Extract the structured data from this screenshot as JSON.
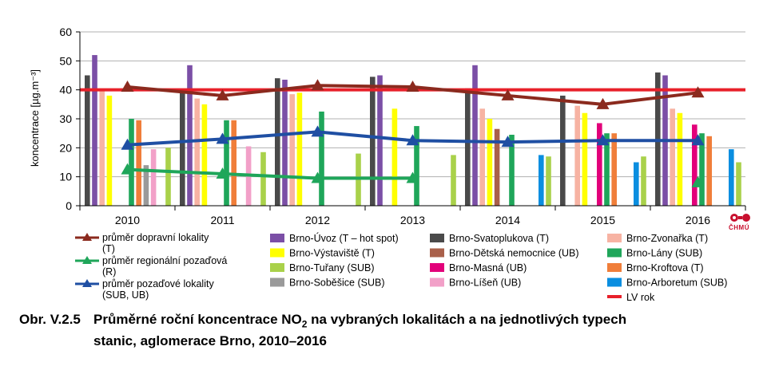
{
  "chart_data": {
    "type": "bar",
    "categories": [
      "2010",
      "2011",
      "2012",
      "2013",
      "2014",
      "2015",
      "2016"
    ],
    "ylabel": "koncentrace [µg.m⁻³]",
    "ylim": [
      0,
      60
    ],
    "yticks": [
      0,
      10,
      20,
      30,
      40,
      50,
      60
    ],
    "grid": "horizontal",
    "legend_position": "bottom",
    "bar_series": [
      {
        "name": "Brno-Svatoplukova (T)",
        "color": "#4a4a4a",
        "values": [
          45,
          39,
          44,
          44.5,
          40.5,
          38,
          46
        ]
      },
      {
        "name": "Brno-Úvoz (T – hot spot)",
        "color": "#7b4fa6",
        "values": [
          52,
          48.5,
          43.5,
          45,
          48.5,
          null,
          45
        ]
      },
      {
        "name": "Brno-Zvonařka (T)",
        "color": "#f7b3a3",
        "values": [
          39.5,
          37,
          38.5,
          null,
          33.5,
          34.5,
          33.5
        ]
      },
      {
        "name": "Brno-Výstaviště (T)",
        "color": "#ffff00",
        "values": [
          38,
          35,
          39,
          33.5,
          30,
          32,
          32
        ]
      },
      {
        "name": "Brno-Dětská nemocnice (UB)",
        "color": "#a9604a",
        "values": [
          null,
          null,
          null,
          null,
          26.5,
          null,
          null
        ]
      },
      {
        "name": "Brno-Masná (UB)",
        "color": "#e2007a",
        "values": [
          null,
          null,
          null,
          null,
          null,
          28.5,
          28
        ]
      },
      {
        "name": "Brno-Lány (SUB)",
        "color": "#1fa65a",
        "values": [
          30,
          29.5,
          32.5,
          27.5,
          24.5,
          25,
          25
        ]
      },
      {
        "name": "Brno-Kroftova (T)",
        "color": "#f07e3a",
        "values": [
          29.5,
          29.5,
          null,
          null,
          null,
          25,
          24
        ]
      },
      {
        "name": "Brno-Soběšice (SUB)",
        "color": "#9a9a9a",
        "values": [
          14,
          null,
          null,
          null,
          null,
          null,
          null
        ]
      },
      {
        "name": "Brno-Líšeň (UB)",
        "color": "#f2a0c8",
        "values": [
          19.5,
          20.5,
          null,
          null,
          null,
          null,
          null
        ]
      },
      {
        "name": "Brno-Arboretum (SUB)",
        "color": "#0a8ee0",
        "values": [
          null,
          null,
          null,
          null,
          17.5,
          15,
          19.5
        ]
      },
      {
        "name": "Brno-Tuřany (SUB)",
        "color": "#a9d14a",
        "values": [
          20,
          18.5,
          18,
          17.5,
          17,
          17,
          15
        ]
      }
    ],
    "line_series": [
      {
        "name": "průměr dopravní lokality (T)",
        "color": "#8b2a1e",
        "values": [
          41,
          38,
          41.5,
          41,
          38,
          35,
          39
        ]
      },
      {
        "name": "průměr regionální pozaďová (R)",
        "color": "#1fa65a",
        "values": [
          12.5,
          11,
          9.5,
          9.5,
          null,
          null,
          8
        ]
      },
      {
        "name": "průměr pozaďové lokality (SUB, UB)",
        "color": "#1f4fa3",
        "values": [
          21,
          23,
          25.5,
          22.5,
          22,
          22.5,
          22.5
        ]
      }
    ],
    "limit_line": {
      "name": "LV rok",
      "color": "#e8202a",
      "value": 40
    }
  },
  "legend": {
    "lines": [
      {
        "label_1": "průměr dopravní lokality",
        "label_2": "(T)",
        "color": "#8b2a1e"
      },
      {
        "label_1": "průměr regionální pozaďová",
        "label_2": "(R)",
        "color": "#1fa65a"
      },
      {
        "label_1": "průměr pozaďové lokality",
        "label_2": "(SUB, UB)",
        "color": "#1f4fa3"
      }
    ],
    "boxes_col2": [
      {
        "label": "Brno-Úvoz (T – hot spot)",
        "color": "#7b4fa6"
      },
      {
        "label": "Brno-Výstaviště (T)",
        "color": "#ffff00"
      },
      {
        "label": "Brno-Tuřany (SUB)",
        "color": "#a9d14a"
      },
      {
        "label": "Brno-Soběšice (SUB)",
        "color": "#9a9a9a"
      }
    ],
    "boxes_col3": [
      {
        "label": "Brno-Svatoplukova (T)",
        "color": "#4a4a4a"
      },
      {
        "label": "Brno-Dětská nemocnice (UB)",
        "color": "#a9604a"
      },
      {
        "label": "Brno-Masná (UB)",
        "color": "#e2007a"
      },
      {
        "label": "Brno-Líšeň (UB)",
        "color": "#f2a0c8"
      }
    ],
    "boxes_col4": [
      {
        "label": "Brno-Zvonařka (T)",
        "color": "#f7b3a3"
      },
      {
        "label": "Brno-Lány (SUB)",
        "color": "#1fa65a"
      },
      {
        "label": "Brno-Kroftova (T)",
        "color": "#f07e3a"
      },
      {
        "label": "Brno-Arboretum (SUB)",
        "color": "#0a8ee0"
      },
      {
        "label": "LV rok",
        "color": "#e8202a",
        "kind": "line"
      }
    ]
  },
  "caption": {
    "label": "Obr. V.2.5",
    "text_before": "Průměrné roční koncentrace NO",
    "subscript": "2",
    "text_after": " na vybraných lokalitách a na jednotlivých typech",
    "line2": "stanic, aglomerace Brno, 2010–2016"
  },
  "logo": {
    "text": "ČHMÚ"
  }
}
